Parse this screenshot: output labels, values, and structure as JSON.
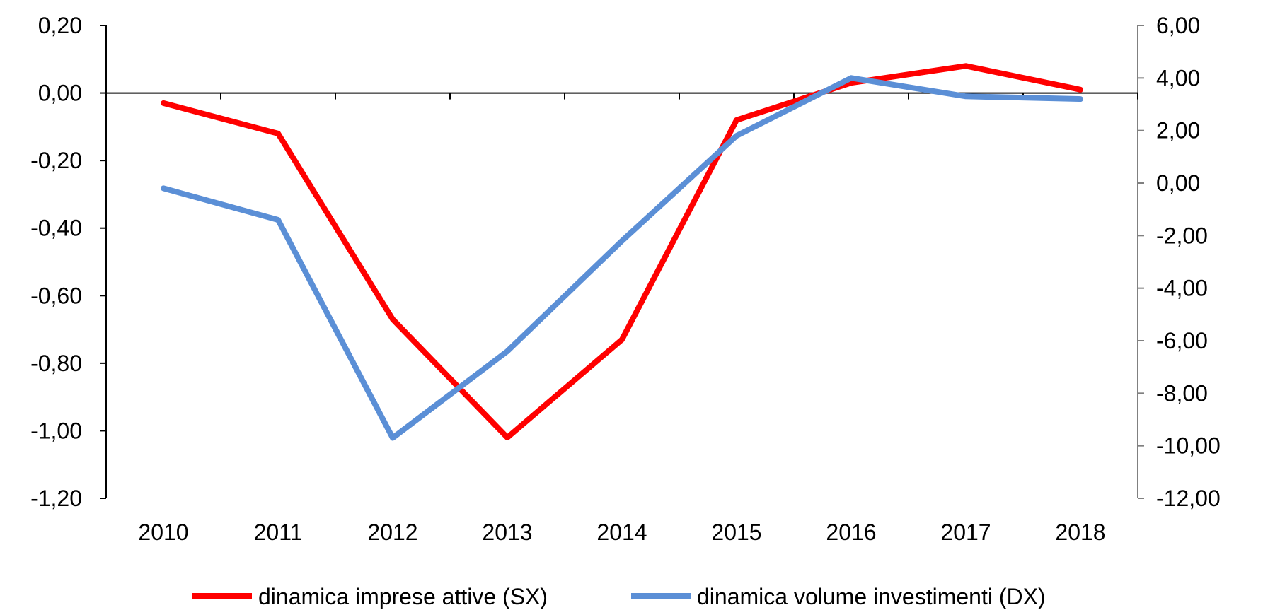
{
  "chart_data": {
    "type": "line",
    "categories": [
      "2010",
      "2011",
      "2012",
      "2013",
      "2014",
      "2015",
      "2016",
      "2017",
      "2018"
    ],
    "series": [
      {
        "name": "dinamica imprese attive (SX)",
        "axis": "left",
        "color": "#ff0000",
        "values": [
          -0.03,
          -0.12,
          -0.67,
          -1.02,
          -0.73,
          -0.08,
          0.03,
          0.08,
          0.01
        ]
      },
      {
        "name": "dinamica volume investimenti (DX)",
        "axis": "right",
        "color": "#5b8fd6",
        "values": [
          -0.2,
          -1.4,
          -9.7,
          -6.4,
          -2.2,
          1.8,
          4.0,
          3.3,
          3.2
        ]
      }
    ],
    "y_left": {
      "range": [
        -1.2,
        0.2
      ],
      "ticks": [
        "0,20",
        "0,00",
        "-0,20",
        "-0,40",
        "-0,60",
        "-0,80",
        "-1,00",
        "-1,20"
      ]
    },
    "y_right": {
      "range": [
        -12,
        6
      ],
      "ticks": [
        "6,00",
        "4,00",
        "2,00",
        "0,00",
        "-2,00",
        "-4,00",
        "-6,00",
        "-8,00",
        "-10,00",
        "-12,00"
      ]
    },
    "grid": false,
    "legend_position": "bottom"
  }
}
